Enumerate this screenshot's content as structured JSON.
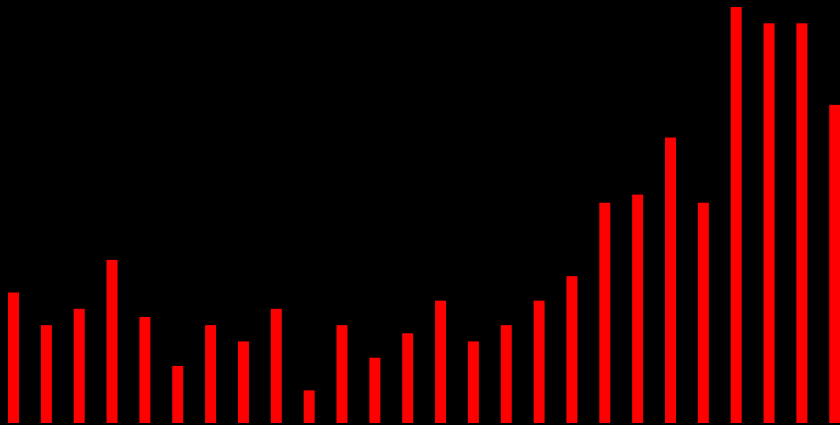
{
  "chart_data": {
    "type": "bar",
    "background": "#000000",
    "bar_color": "#ff0000",
    "grid": false,
    "legend": "none",
    "ylim": [
      0,
      51
    ],
    "values": [
      16,
      12,
      14,
      20,
      13,
      7,
      12,
      10,
      14,
      4,
      12,
      8,
      11,
      15,
      10,
      12,
      15,
      18,
      27,
      28,
      35,
      27,
      51,
      49,
      49,
      39
    ]
  }
}
